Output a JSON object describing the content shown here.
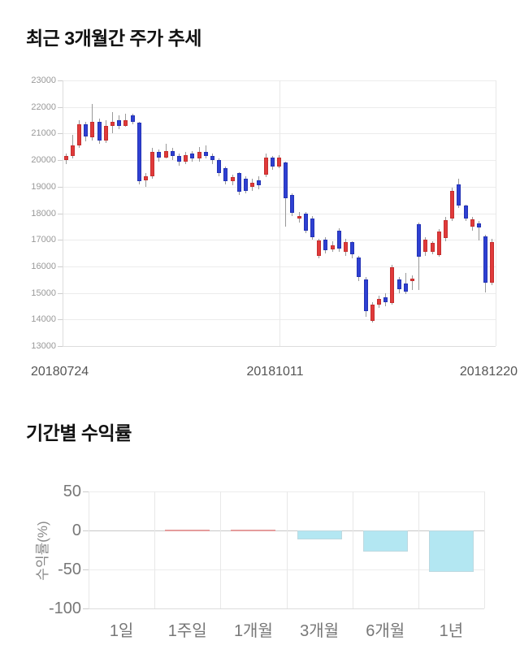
{
  "page": {
    "background": "#ffffff"
  },
  "chart_data": [
    {
      "type": "candlestick",
      "title": "최근 3개월간 주가 추세",
      "x_labels": [
        "20180724",
        "20181011",
        "20181220"
      ],
      "y_ticks": [
        23000,
        22000,
        21000,
        20000,
        19000,
        18000,
        17000,
        16000,
        15000,
        14000,
        13000
      ],
      "ylim": [
        13000,
        23000
      ],
      "grid": "on",
      "colors": {
        "up": "#e03a3a",
        "down": "#2e40d2",
        "wick": "#999999",
        "grid": "#ececec"
      },
      "candle_format": "[open, close, low, high]",
      "candles": [
        [
          20000,
          20150,
          19850,
          20250
        ],
        [
          20150,
          20550,
          20050,
          20950
        ],
        [
          20550,
          21350,
          20450,
          21500
        ],
        [
          21350,
          20900,
          20700,
          21450
        ],
        [
          20850,
          21450,
          20750,
          22100
        ],
        [
          21450,
          20750,
          20600,
          21550
        ],
        [
          20750,
          21300,
          20650,
          21500
        ],
        [
          21300,
          21450,
          21000,
          21800
        ],
        [
          21500,
          21300,
          21150,
          21700
        ],
        [
          21300,
          21500,
          21250,
          21750
        ],
        [
          21700,
          21450,
          21350,
          21750
        ],
        [
          21400,
          19200,
          19100,
          21450
        ],
        [
          19250,
          19400,
          19000,
          19500
        ],
        [
          19400,
          20300,
          19300,
          20450
        ],
        [
          20300,
          20100,
          19950,
          20400
        ],
        [
          20100,
          20350,
          20050,
          20600
        ],
        [
          20350,
          20150,
          20000,
          20450
        ],
        [
          20150,
          19950,
          19800,
          20250
        ],
        [
          19950,
          20200,
          19850,
          20300
        ],
        [
          20250,
          20050,
          19950,
          20350
        ],
        [
          20050,
          20300,
          19950,
          20500
        ],
        [
          20300,
          20150,
          20050,
          20550
        ],
        [
          20150,
          20000,
          19850,
          20250
        ],
        [
          20000,
          19500,
          19400,
          20050
        ],
        [
          19700,
          19200,
          19100,
          19750
        ],
        [
          19200,
          19350,
          19050,
          19450
        ],
        [
          19500,
          18800,
          18700,
          19550
        ],
        [
          19300,
          18850,
          18750,
          19400
        ],
        [
          19000,
          19150,
          18850,
          19300
        ],
        [
          19250,
          19050,
          18900,
          19400
        ],
        [
          19450,
          20080,
          19350,
          20250
        ],
        [
          20080,
          19750,
          19650,
          20150
        ],
        [
          19760,
          20080,
          19700,
          20200
        ],
        [
          19900,
          18560,
          17500,
          19950
        ],
        [
          18680,
          18000,
          17900,
          18750
        ],
        [
          17800,
          17900,
          17650,
          18050
        ],
        [
          18000,
          17330,
          17250,
          18050
        ],
        [
          17800,
          17100,
          17000,
          17900
        ],
        [
          16400,
          16970,
          16300,
          17050
        ],
        [
          17000,
          16600,
          16500,
          17100
        ],
        [
          16650,
          16800,
          16550,
          16950
        ],
        [
          17340,
          16660,
          16550,
          17430
        ],
        [
          16550,
          16900,
          16400,
          17050
        ],
        [
          16900,
          16450,
          16300,
          16950
        ],
        [
          16340,
          15600,
          15450,
          16400
        ],
        [
          15500,
          14300,
          14100,
          15600
        ],
        [
          13950,
          14550,
          13880,
          14650
        ],
        [
          14560,
          14780,
          14450,
          14900
        ],
        [
          14850,
          14650,
          14500,
          15000
        ],
        [
          14630,
          15970,
          14550,
          16050
        ],
        [
          15500,
          15130,
          15000,
          15600
        ],
        [
          15340,
          15050,
          14950,
          15750
        ],
        [
          15440,
          15540,
          15100,
          15650
        ],
        [
          17590,
          16350,
          15100,
          17650
        ],
        [
          16540,
          17000,
          16400,
          17100
        ],
        [
          16560,
          16870,
          16450,
          16950
        ],
        [
          16440,
          17320,
          16350,
          17400
        ],
        [
          17060,
          17750,
          16950,
          17850
        ],
        [
          17800,
          18840,
          17700,
          18950
        ],
        [
          19100,
          18280,
          18200,
          19310
        ],
        [
          18280,
          17790,
          17700,
          18330
        ],
        [
          17500,
          17780,
          17350,
          17850
        ],
        [
          17620,
          17470,
          16960,
          17700
        ],
        [
          17120,
          15380,
          15030,
          17200
        ],
        [
          15380,
          16900,
          15300,
          17050
        ]
      ]
    },
    {
      "type": "bar",
      "title": "기간별 수익률",
      "ylabel": "수익률(%)",
      "categories": [
        "1일",
        "1주일",
        "1개월",
        "3개월",
        "6개월",
        "1년"
      ],
      "values": [
        0,
        1.5,
        0.5,
        -11,
        -27,
        -53
      ],
      "y_ticks": [
        50,
        0,
        -50,
        -100
      ],
      "ylim": [
        -100,
        50
      ],
      "grid": "on",
      "colors": {
        "positive": "#f2b4b4",
        "negative": "#b3e7f2"
      }
    }
  ]
}
